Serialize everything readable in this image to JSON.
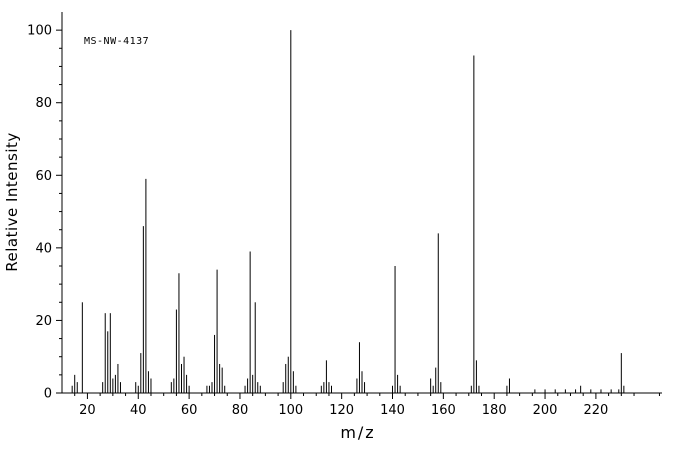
{
  "chart_data": {
    "type": "bar",
    "chart_kind": "mass-spectrum",
    "title": "MS-NW-4137",
    "xlabel": "m/z",
    "ylabel": "Relative Intensity",
    "xlim": [
      10,
      246
    ],
    "ylim": [
      0,
      105
    ],
    "x_major_ticks": [
      20,
      40,
      60,
      80,
      100,
      120,
      140,
      160,
      180,
      200,
      220
    ],
    "y_major_ticks": [
      0,
      20,
      40,
      60,
      80,
      100
    ],
    "x_minor_step": 5,
    "y_minor_step": 5,
    "axis_color": "#000000",
    "peak_color": "#000000",
    "background": "#ffffff",
    "peaks": [
      [
        14,
        2
      ],
      [
        15,
        5
      ],
      [
        16,
        3
      ],
      [
        18,
        25
      ],
      [
        26,
        3
      ],
      [
        27,
        22
      ],
      [
        28,
        17
      ],
      [
        29,
        22
      ],
      [
        30,
        4
      ],
      [
        31,
        5
      ],
      [
        32,
        8
      ],
      [
        33,
        3
      ],
      [
        39,
        3
      ],
      [
        40,
        2
      ],
      [
        41,
        11
      ],
      [
        42,
        46
      ],
      [
        43,
        59
      ],
      [
        44,
        6
      ],
      [
        45,
        4
      ],
      [
        53,
        3
      ],
      [
        54,
        4
      ],
      [
        55,
        23
      ],
      [
        56,
        33
      ],
      [
        57,
        8
      ],
      [
        58,
        10
      ],
      [
        59,
        5
      ],
      [
        60,
        2
      ],
      [
        67,
        2
      ],
      [
        68,
        2
      ],
      [
        69,
        3
      ],
      [
        70,
        16
      ],
      [
        71,
        34
      ],
      [
        72,
        8
      ],
      [
        73,
        7
      ],
      [
        74,
        2
      ],
      [
        82,
        2
      ],
      [
        83,
        4
      ],
      [
        84,
        39
      ],
      [
        85,
        5
      ],
      [
        86,
        25
      ],
      [
        87,
        3
      ],
      [
        88,
        2
      ],
      [
        97,
        3
      ],
      [
        98,
        8
      ],
      [
        99,
        10
      ],
      [
        100,
        100
      ],
      [
        101,
        6
      ],
      [
        102,
        2
      ],
      [
        112,
        2
      ],
      [
        113,
        3
      ],
      [
        114,
        9
      ],
      [
        115,
        3
      ],
      [
        116,
        2
      ],
      [
        126,
        4
      ],
      [
        127,
        14
      ],
      [
        128,
        6
      ],
      [
        129,
        3
      ],
      [
        140,
        2
      ],
      [
        141,
        35
      ],
      [
        142,
        5
      ],
      [
        143,
        2
      ],
      [
        155,
        4
      ],
      [
        156,
        2
      ],
      [
        157,
        7
      ],
      [
        158,
        44
      ],
      [
        159,
        3
      ],
      [
        171,
        2
      ],
      [
        172,
        93
      ],
      [
        173,
        9
      ],
      [
        174,
        2
      ],
      [
        185,
        2
      ],
      [
        186,
        4
      ],
      [
        196,
        1
      ],
      [
        200,
        1
      ],
      [
        204,
        1
      ],
      [
        208,
        1
      ],
      [
        212,
        1
      ],
      [
        214,
        2
      ],
      [
        218,
        1
      ],
      [
        222,
        1
      ],
      [
        226,
        1
      ],
      [
        229,
        1
      ],
      [
        230,
        11
      ],
      [
        231,
        2
      ]
    ]
  }
}
